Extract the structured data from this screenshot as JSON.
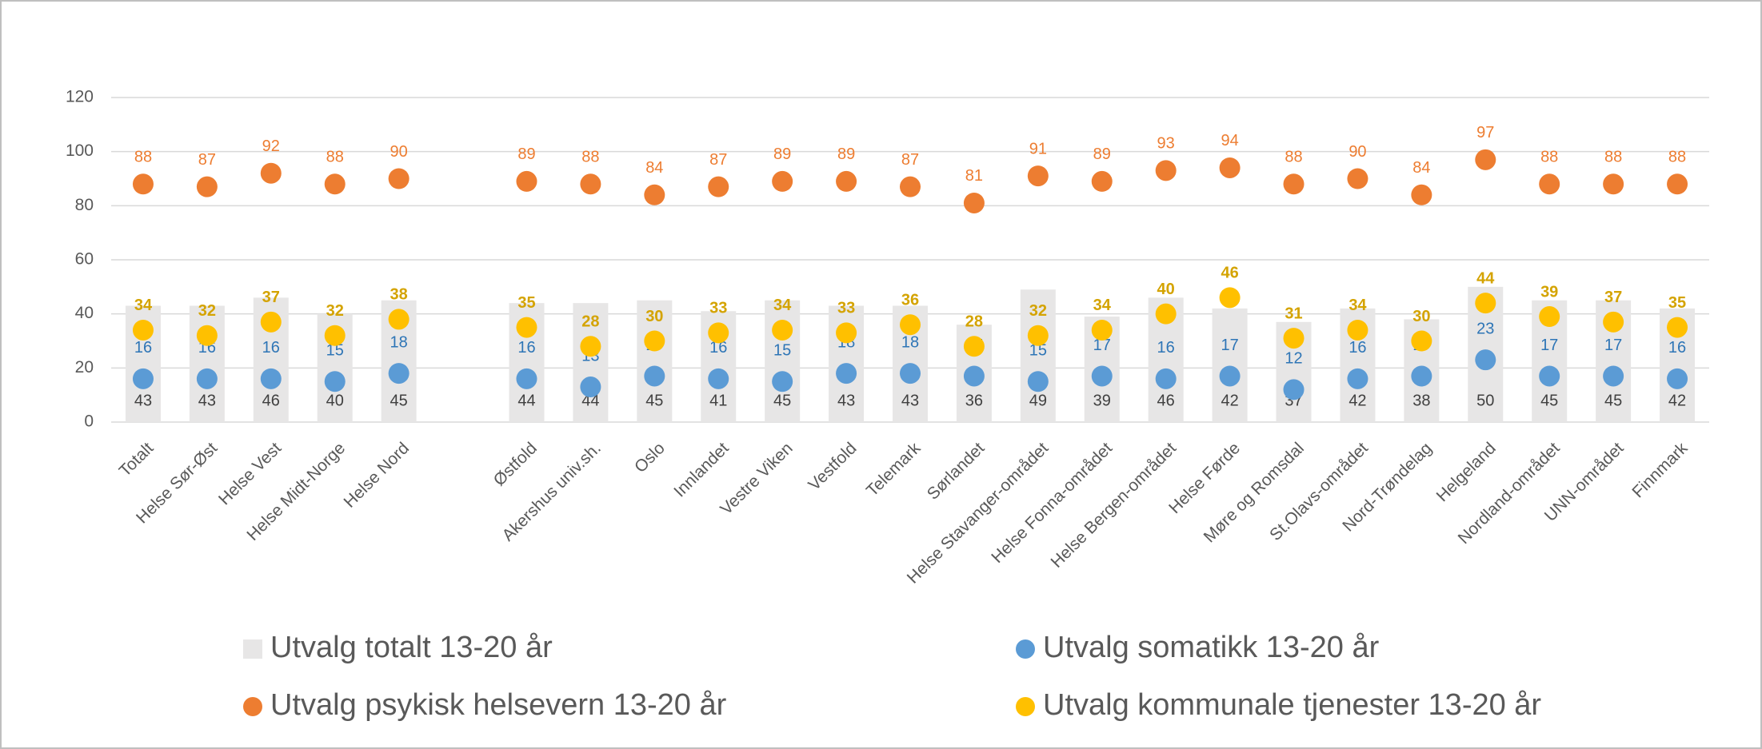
{
  "chart_data": {
    "type": "bar",
    "categories": [
      "Totalt",
      "Helse Sør-Øst",
      "Helse Vest",
      "Helse Midt-Norge",
      "Helse Nord",
      null,
      "Østfold",
      "Akershus univ.sh.",
      "Oslo",
      "Innlandet",
      "Vestre Viken",
      "Vestfold",
      "Telemark",
      "Sørlandet",
      "Helse Stavanger-området",
      "Helse Fonna-området",
      "Helse Bergen-området",
      "Helse Førde",
      "Møre og Romsdal",
      "St.Olavs-området",
      "Nord-Trøndelag",
      "Helgeland",
      "Nordland-området",
      "UNN-området",
      "Finnmark"
    ],
    "series": [
      {
        "name": "Utvalg totalt 13-20 år",
        "type": "bar",
        "color": "#e7e6e6",
        "label_color": "#404040",
        "values": [
          43,
          43,
          46,
          40,
          45,
          null,
          44,
          44,
          45,
          41,
          45,
          43,
          43,
          36,
          49,
          39,
          46,
          42,
          37,
          42,
          38,
          50,
          45,
          45,
          42
        ]
      },
      {
        "name": "Utvalg somatikk 13-20 år",
        "type": "scatter",
        "color": "#5b9bd5",
        "label_color": "#2e75b6",
        "values": [
          16,
          16,
          16,
          15,
          18,
          null,
          16,
          13,
          17,
          16,
          15,
          18,
          18,
          17,
          15,
          17,
          16,
          17,
          12,
          16,
          17,
          23,
          17,
          17,
          16
        ]
      },
      {
        "name": "Utvalg psykisk helsevern 13-20 år",
        "type": "scatter",
        "color": "#ed7d31",
        "label_color": "#ed7d31",
        "values": [
          88,
          87,
          92,
          88,
          90,
          null,
          89,
          88,
          84,
          87,
          89,
          89,
          87,
          81,
          91,
          89,
          93,
          94,
          88,
          90,
          84,
          97,
          88,
          88,
          88
        ]
      },
      {
        "name": "Utvalg kommunale tjenester 13-20 år",
        "type": "scatter",
        "color": "#ffc000",
        "label_color": "#d4a300",
        "values": [
          34,
          32,
          37,
          32,
          38,
          null,
          35,
          28,
          30,
          33,
          34,
          33,
          36,
          28,
          32,
          34,
          40,
          46,
          31,
          34,
          30,
          44,
          39,
          37,
          35
        ]
      }
    ],
    "ylim": [
      0,
      120
    ],
    "yticks": [
      0,
      20,
      40,
      60,
      80,
      100,
      120
    ],
    "grid": true,
    "legend": "bottom"
  }
}
